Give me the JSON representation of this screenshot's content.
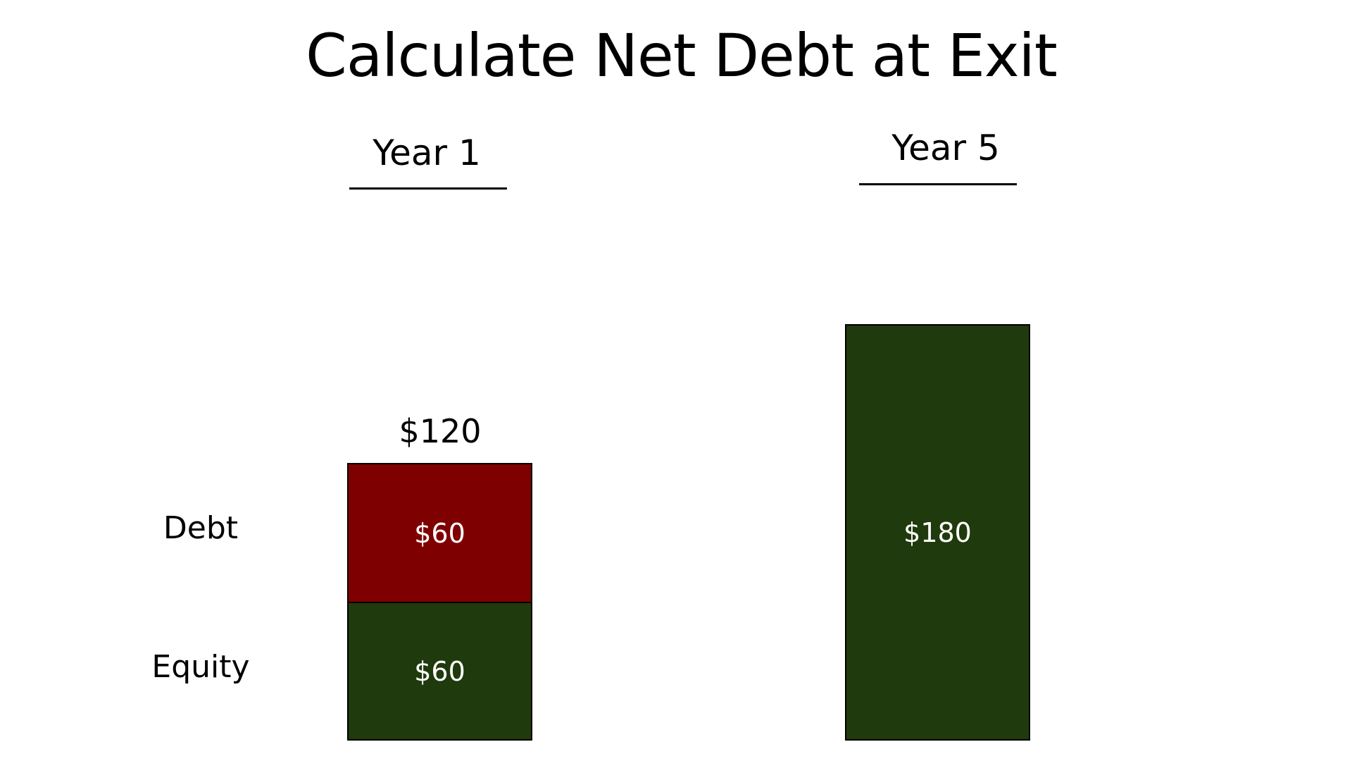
{
  "title": "Calculate Net Debt at Exit",
  "columns": [
    {
      "label": "Year 1",
      "total_label": "$120"
    },
    {
      "label": "Year 5"
    }
  ],
  "row_labels": [
    "Debt",
    "Equity"
  ],
  "colors": {
    "debt": "#7f0000",
    "equity": "#1f3a0c"
  },
  "chart_data": {
    "type": "bar",
    "stacked": true,
    "categories": [
      "Year 1",
      "Year 5"
    ],
    "series": [
      {
        "name": "Equity",
        "values": [
          60,
          180
        ],
        "labels": [
          "$60",
          "$180"
        ]
      },
      {
        "name": "Debt",
        "values": [
          60,
          0
        ],
        "labels": [
          "$60",
          ""
        ]
      }
    ],
    "totals": [
      "$120",
      ""
    ]
  }
}
